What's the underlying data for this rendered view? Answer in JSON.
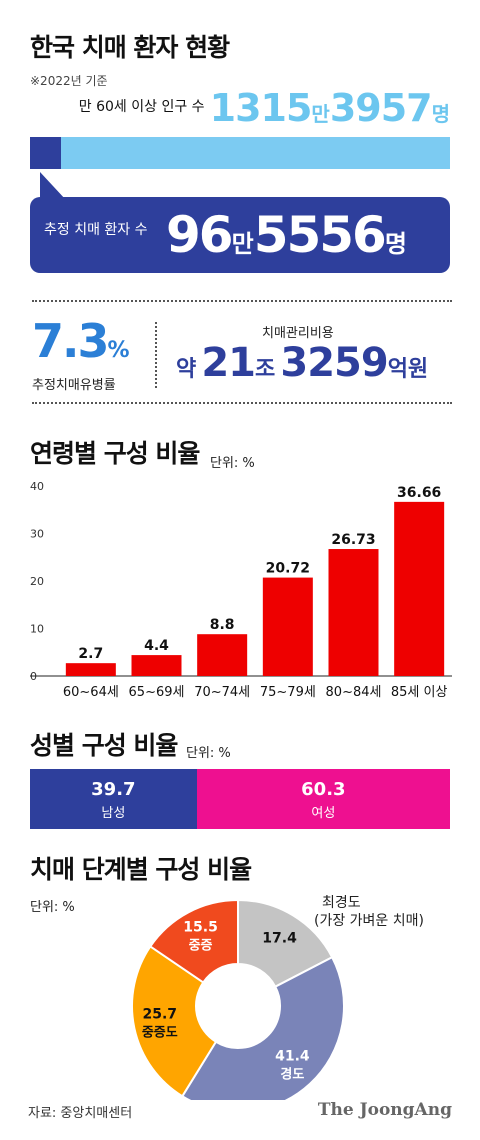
{
  "header": {
    "title": "한국 치매 환자 현황",
    "basis": "※2022년 기준"
  },
  "population": {
    "label": "만 60세 이상 인구 수",
    "num1": "1315",
    "unit1": "만",
    "num2": "3957",
    "unit2": "명",
    "patients_fraction": 0.0734
  },
  "patients": {
    "label": "추정 치매 환자 수",
    "num1": "96",
    "unit1": "만",
    "num2": "5556",
    "unit2": "명"
  },
  "stats": {
    "prevalence_value": "7.3",
    "prevalence_unit": "%",
    "prevalence_label": "추정치매유병률",
    "cost_label": "치매관리비용",
    "cost_prefix": "약",
    "cost_num1": "21",
    "cost_unit1": "조",
    "cost_num2": "3259",
    "cost_unit2": "억원"
  },
  "colors": {
    "navy": "#2e3f9c",
    "sky": "#7ccbf2",
    "red": "#ee0000",
    "magenta": "#ee1090",
    "pie_gray": "#c4c4c4",
    "pie_slate": "#7a84b8",
    "pie_orange": "#ffa500",
    "pie_red": "#f04a1e"
  },
  "chart_data": [
    {
      "type": "bar",
      "title": "연령별 구성 비율",
      "unit": "단위: %",
      "categories": [
        "60~64세",
        "65~69세",
        "70~74세",
        "75~79세",
        "80~84세",
        "85세 이상"
      ],
      "values": [
        2.7,
        4.4,
        8.8,
        20.72,
        26.73,
        36.66
      ],
      "value_labels": [
        "2.7",
        "4.4",
        "8.8",
        "20.72",
        "26.73",
        "36.66"
      ],
      "ylim": [
        0,
        40
      ],
      "yticks": [
        0,
        10,
        20,
        30,
        40
      ],
      "grid": false,
      "bar_color": "#ee0000"
    },
    {
      "type": "bar",
      "title": "성별 구성 비율",
      "unit": "단위: %",
      "orientation": "horizontal-stacked",
      "segments": [
        {
          "label": "남성",
          "value": 39.7,
          "value_label": "39.7",
          "color": "#2e3f9c"
        },
        {
          "label": "여성",
          "value": 60.3,
          "value_label": "60.3",
          "color": "#ee1090"
        }
      ]
    },
    {
      "type": "pie",
      "title": "치매 단계별 구성 비율",
      "unit": "단위: %",
      "donut": true,
      "slices": [
        {
          "label": "",
          "value": 17.4,
          "value_label": "17.4",
          "color": "#c4c4c4"
        },
        {
          "label": "경도",
          "value": 41.4,
          "value_label": "41.4",
          "color": "#7a84b8"
        },
        {
          "label": "중증도",
          "value": 25.7,
          "value_label": "25.7",
          "color": "#ffa500"
        },
        {
          "label": "중증",
          "value": 15.5,
          "value_label": "15.5",
          "color": "#f04a1e"
        }
      ],
      "callout": {
        "line1": "최경도",
        "line2": "(가장 가벼운 치매)"
      }
    }
  ],
  "footer": {
    "source": "자료: 중앙치매센터",
    "brand": "The JoongAng"
  }
}
